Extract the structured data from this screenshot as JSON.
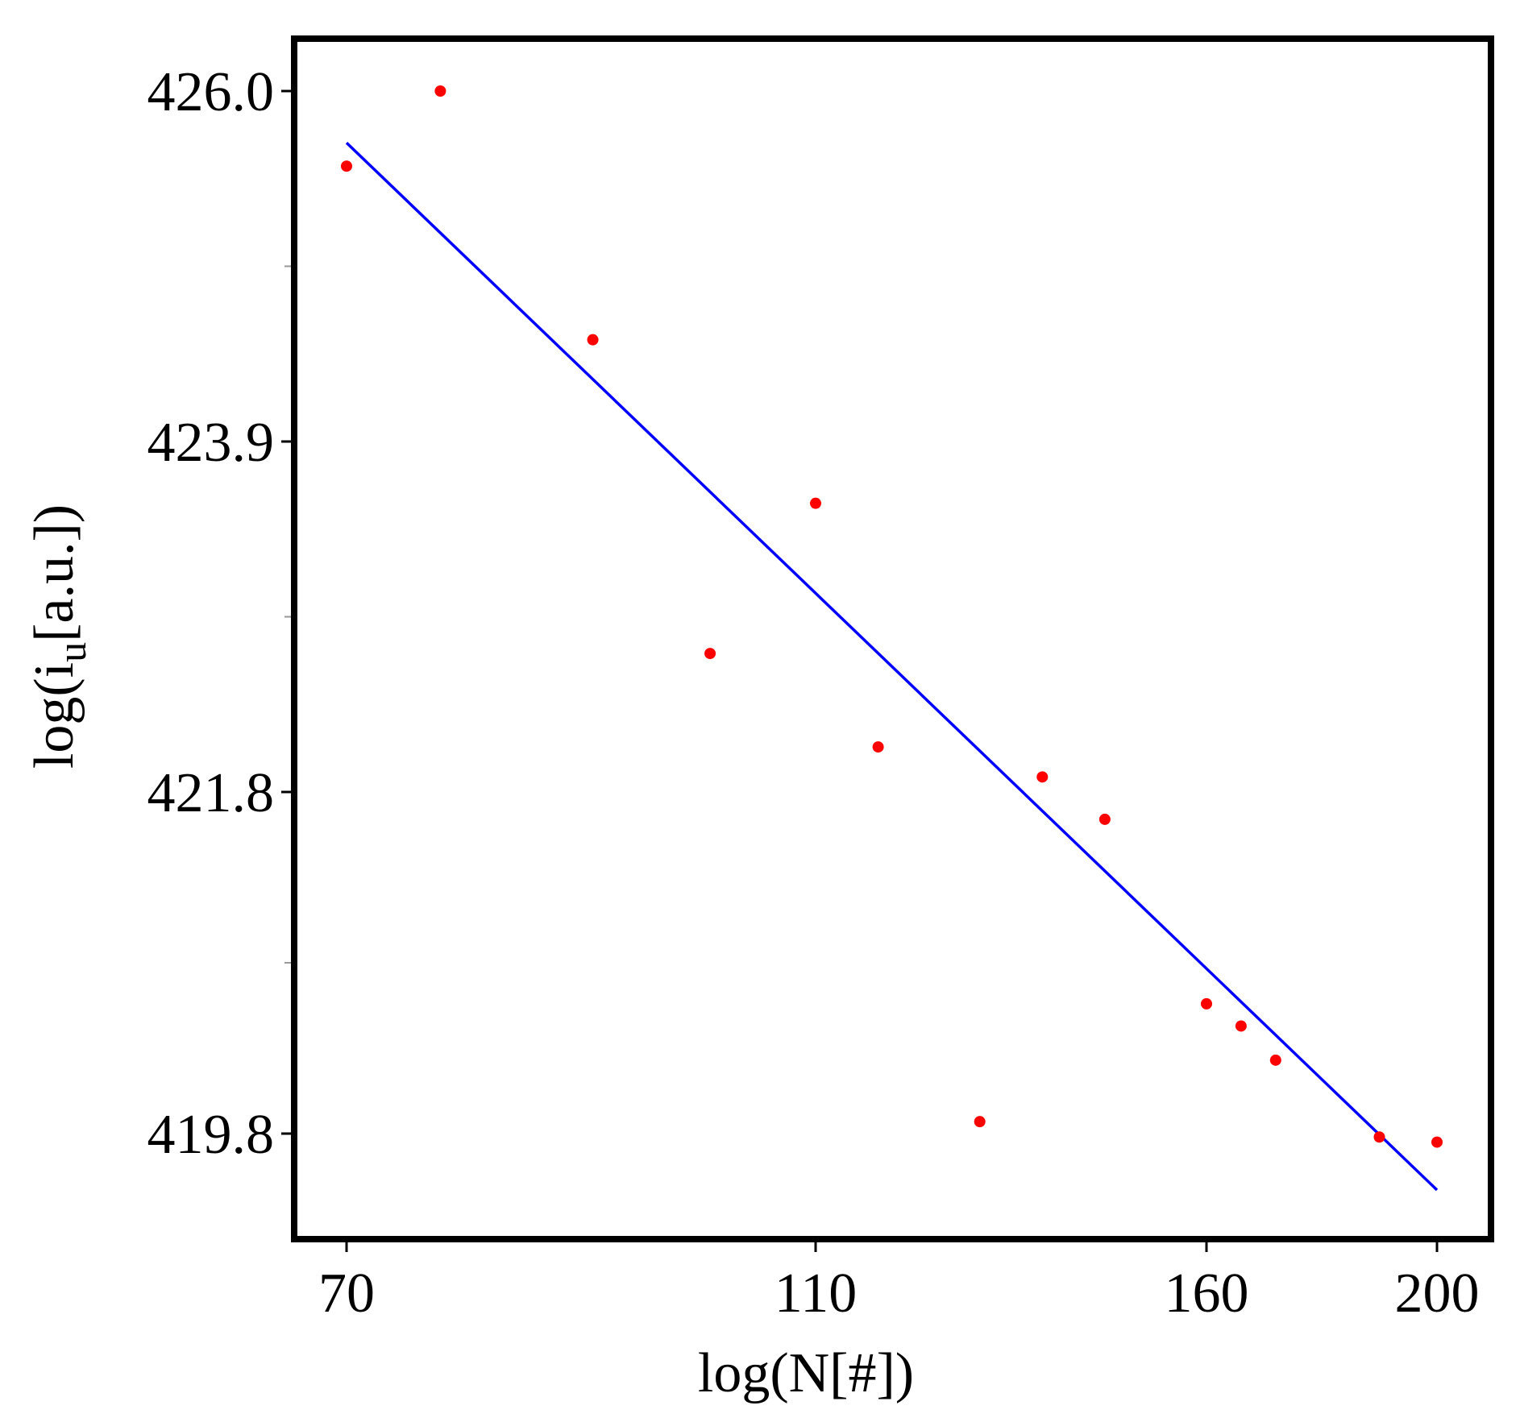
{
  "chart_data": {
    "type": "scatter",
    "title": "",
    "xlabel": "log(N[#])",
    "ylabel": {
      "prefix": "log(i",
      "subscript": "u",
      "suffix": "[a.u.])"
    },
    "x_ticks": [
      70,
      110,
      160,
      200
    ],
    "x_tick_labels": [
      "70",
      "110",
      "160",
      "200"
    ],
    "y_ticks": [
      419.8,
      421.8,
      423.9,
      426.0
    ],
    "y_tick_labels": [
      "419.8",
      "421.8",
      "423.9",
      "426.0"
    ],
    "grid": false,
    "legend": false,
    "points": {
      "color": "#ff0000",
      "x": [
        70,
        78,
        91,
        101,
        110,
        118,
        131,
        139,
        147,
        160,
        166,
        172,
        190,
        200
      ],
      "y": [
        425.55,
        426.0,
        424.51,
        422.63,
        423.53,
        422.07,
        419.87,
        421.89,
        421.64,
        420.56,
        420.43,
        420.23,
        419.78,
        419.75
      ]
    },
    "fit_line": {
      "color": "#0000ff",
      "x": [
        70,
        200
      ],
      "y": [
        425.69,
        419.47
      ]
    }
  }
}
